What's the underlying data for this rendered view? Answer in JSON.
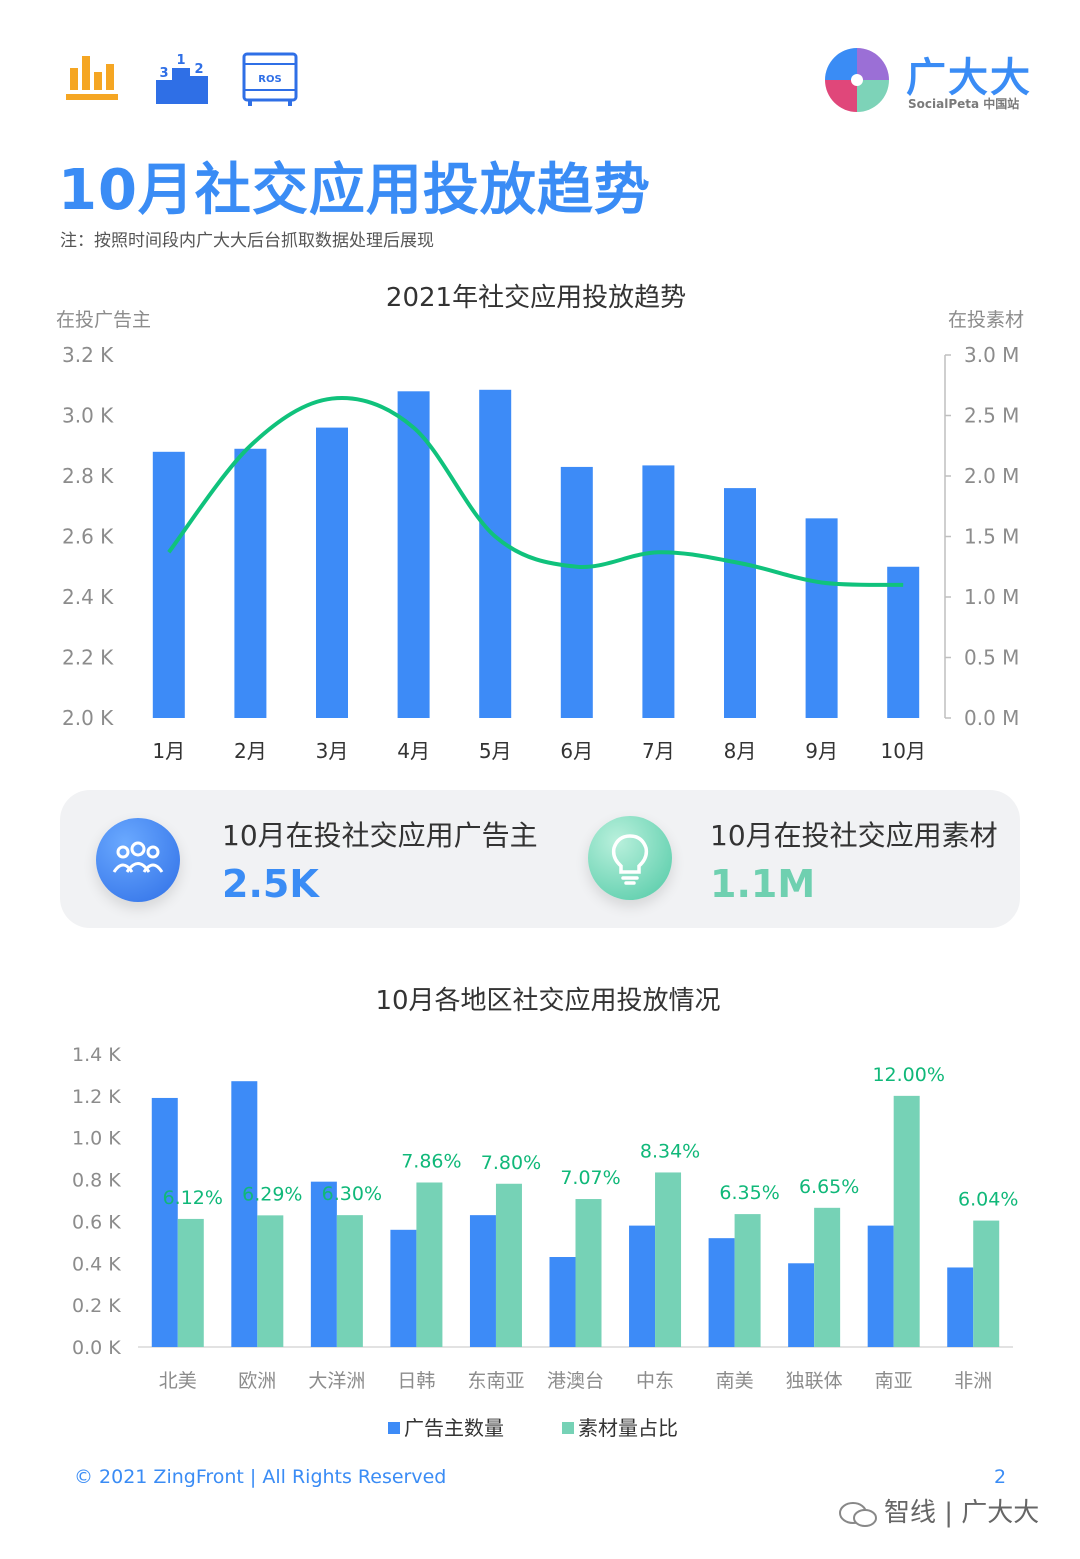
{
  "header": {
    "icons": [
      "bar-chart-icon",
      "ranking-podium-icon",
      "ros-server-icon"
    ],
    "ros_label": "ROS",
    "brand": {
      "name": "广大大",
      "sub": "SocialPeta 中国站"
    },
    "title": "10月社交应用投放趋势",
    "note": "注：按照时间段内广大大后台抓取数据处理后展现"
  },
  "colors": {
    "accent": "#3a8cf5",
    "bar_blue": "#3d8bf7",
    "line_green": "#10c27c",
    "bar_teal": "#76d2b6"
  },
  "stats": [
    {
      "label": "10月在投社交应用广告主",
      "value": "2.5K",
      "icon": "people-group-icon"
    },
    {
      "label": "10月在投社交应用素材",
      "value": "1.1M",
      "icon": "lightbulb-icon"
    }
  ],
  "chart_data": [
    {
      "type": "bar",
      "title": "2021年社交应用投放趋势",
      "categories": [
        "1月",
        "2月",
        "3月",
        "4月",
        "5月",
        "6月",
        "7月",
        "8月",
        "9月",
        "10月"
      ],
      "ylabel": "在投广告主",
      "y2label": "在投素材",
      "ylim": [
        2.0,
        3.2
      ],
      "yticks": [
        "2.0 K",
        "2.2 K",
        "2.4 K",
        "2.6 K",
        "2.8 K",
        "3.0 K",
        "3.2 K"
      ],
      "y2lim": [
        0.0,
        3.0
      ],
      "y2ticks": [
        "0.0 M",
        "0.5 M",
        "1.0 M",
        "1.5 M",
        "2.0 M",
        "2.5 M",
        "3.0 M"
      ],
      "series": [
        {
          "type": "bar",
          "axis": "left",
          "values": [
            2.88,
            2.89,
            2.96,
            3.08,
            3.085,
            2.83,
            2.835,
            2.76,
            2.66,
            2.5
          ]
        },
        {
          "type": "line",
          "axis": "right",
          "smooth": true,
          "values": [
            1.37,
            2.25,
            2.64,
            2.4,
            1.5,
            1.25,
            1.37,
            1.28,
            1.12,
            1.1
          ]
        }
      ],
      "grid": false
    },
    {
      "type": "bar",
      "title": "10月各地区社交应用投放情况",
      "categories": [
        "北美",
        "欧洲",
        "大洋洲",
        "日韩",
        "东南亚",
        "港澳台",
        "中东",
        "南美",
        "独联体",
        "南亚",
        "非洲"
      ],
      "ylim": [
        0.0,
        1.4
      ],
      "yticks": [
        "0.0 K",
        "0.2 K",
        "0.4 K",
        "0.6 K",
        "0.8 K",
        "1.0 K",
        "1.2 K",
        "1.4 K"
      ],
      "legend": "bottom",
      "series": [
        {
          "name": "广告主数量",
          "values": [
            1.19,
            1.27,
            0.79,
            0.56,
            0.63,
            0.43,
            0.58,
            0.52,
            0.4,
            0.58,
            0.38
          ]
        },
        {
          "name": "素材量占比",
          "values": [
            6.12,
            6.29,
            6.3,
            7.86,
            7.8,
            7.07,
            8.34,
            6.35,
            6.65,
            12.0,
            6.04
          ],
          "labels": [
            "6.12%",
            "6.29%",
            "6.30%",
            "7.86%",
            "7.80%",
            "7.07%",
            "8.34%",
            "6.35%",
            "6.65%",
            "12.00%",
            "6.04%"
          ],
          "unit": "%",
          "scale_max": 14.0
        }
      ],
      "grid": false
    }
  ],
  "footer": {
    "copyright": "© 2021 ZingFront | All Rights Reserved",
    "page_number": "2",
    "watermark": "智线 | 广大大"
  }
}
